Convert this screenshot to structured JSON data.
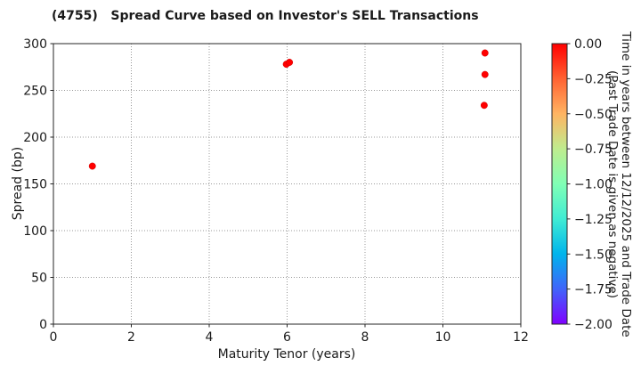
{
  "chart_data": {
    "type": "scatter",
    "title": "(4755)   Spread Curve based on Investor's SELL Transactions",
    "xlabel": "Maturity Tenor (years)",
    "ylabel": "Spread (bp)",
    "xlim": [
      0,
      12
    ],
    "ylim": [
      0,
      300
    ],
    "xticks": [
      0,
      2,
      4,
      6,
      8,
      10,
      12
    ],
    "yticks": [
      0,
      50,
      100,
      150,
      200,
      250,
      300
    ],
    "grid": true,
    "legend": "none",
    "marker_color": "#ff0000",
    "marker_edge_color": "#cc0000",
    "points": [
      {
        "x": 1.0,
        "y": 169,
        "time_value": 0.0
      },
      {
        "x": 5.98,
        "y": 278,
        "time_value": 0.0
      },
      {
        "x": 6.06,
        "y": 280,
        "time_value": 0.0
      },
      {
        "x": 11.08,
        "y": 290,
        "time_value": 0.0
      },
      {
        "x": 11.08,
        "y": 267,
        "time_value": 0.0
      },
      {
        "x": 11.06,
        "y": 234,
        "time_value": 0.0
      }
    ],
    "colorbar": {
      "vmax": 0,
      "vmin": -2,
      "tick_values": [
        0,
        -0.25,
        -0.5,
        -0.75,
        -1,
        -1.25,
        -1.5,
        -1.75,
        -2
      ],
      "tick_labels": [
        "0.00",
        "−0.25",
        "−0.50",
        "−0.75",
        "−1.00",
        "−1.25",
        "−1.50",
        "−1.75",
        "−2.00"
      ],
      "gradient_colors_top_to_bottom": [
        "#ff0000",
        "#ff6232",
        "#ffb462",
        "#bfec8e",
        "#80ffb5",
        "#40ecd4",
        "#00b4ec",
        "#4064fa",
        "#8000ff"
      ],
      "label_line1": "Time in years between 12/12/2025 and Trade Date",
      "label_line2": "(Past Trade Date is given as negative)"
    },
    "frame_color": "#262626",
    "grid_color": "#999999"
  }
}
